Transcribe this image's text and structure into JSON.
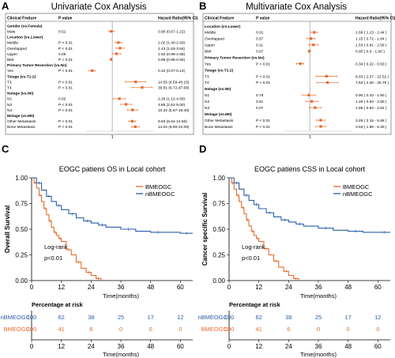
{
  "chart_data": [
    {
      "panel": "A",
      "type": "forest",
      "title": "Univariate Cox Analysis",
      "col_headers": {
        "feature": "Clinical Feature",
        "p": "P value",
        "hr": "Hazard Ratio(95% CI)"
      },
      "x_tick": "1",
      "reference_line": 1,
      "rows": [
        {
          "label": "Gender (vs.Female)",
          "header": true
        },
        {
          "label": "Male",
          "p": "0.51",
          "hr": "0.90 (0.67-1.22)",
          "est": 0.9,
          "lo": 0.67,
          "hi": 1.22
        },
        {
          "label": "Location (vs.Lower)",
          "header": true
        },
        {
          "label": "Middle",
          "p": "P < 0.01",
          "hr": "2.02 (1.40-2.93)",
          "est": 2.02,
          "lo": 1.4,
          "hi": 2.93
        },
        {
          "label": "Overlapped",
          "p": "P < 0.01",
          "hr": "2.43 (1.53-3.84)",
          "est": 2.43,
          "lo": 1.53,
          "hi": 3.84
        },
        {
          "label": "Upper",
          "p": "0.06",
          "hr": "1.63 (0.99-2.68)",
          "est": 1.63,
          "lo": 0.99,
          "hi": 2.68
        },
        {
          "label": "BMI",
          "p": "P < 0.01",
          "hr": "0.89 (0.85-0.94)",
          "est": 0.89,
          "lo": 0.85,
          "hi": 0.94
        },
        {
          "label": "Primary Tumor Resection (vs.No)",
          "header": true
        },
        {
          "label": "Yes",
          "p": "P < 0.01",
          "hr": "0.10 (0.07-0.14)",
          "est": 0.1,
          "lo": 0.07,
          "hi": 0.14
        },
        {
          "label": "Tstage (vs.T1-2)",
          "header": true
        },
        {
          "label": "T3",
          "p": "P < 0.01",
          "hr": "14.55 (4.59-46.15)",
          "est": 14.55,
          "lo": 4.59,
          "hi": 46.15
        },
        {
          "label": "T4",
          "p": "P < 0.01",
          "hr": "30.81 (9.72-97.68)",
          "est": 30.81,
          "lo": 9.72,
          "hi": 97.68
        },
        {
          "label": "Nstage (vs.N0)",
          "header": true
        },
        {
          "label": "N1",
          "p": "0.02",
          "hr": "2.26 (1.12-4.56)",
          "est": 2.26,
          "lo": 1.12,
          "hi": 4.56
        },
        {
          "label": "N2",
          "p": "P < 0.01",
          "hr": "4.85 (2.61-9.00)",
          "est": 4.85,
          "lo": 2.61,
          "hi": 9.0
        },
        {
          "label": "N3",
          "p": "P < 0.01",
          "hr": "10.22 (5.67-18.40)",
          "est": 10.22,
          "lo": 5.67,
          "hi": 18.4
        },
        {
          "label": "Mstage (vs.M0)",
          "header": true
        },
        {
          "label": "Other Metastasis",
          "p": "P < 0.01",
          "hr": "9.83 (6.64-14.56)",
          "est": 9.83,
          "lo": 6.64,
          "hi": 14.56
        },
        {
          "label": "Bone Metastasis",
          "p": "P < 0.01",
          "hr": "14.02 (8.90-22.09)",
          "est": 14.02,
          "lo": 8.9,
          "hi": 22.09
        }
      ]
    },
    {
      "panel": "B",
      "type": "forest",
      "title": "Multivariate Cox Analysis",
      "col_headers": {
        "feature": "Clinical Feature",
        "p": "P value",
        "hr": "Hazard Ratio(95% CI)"
      },
      "x_tick": "1",
      "reference_line": 1,
      "rows": [
        {
          "label": "Location (vs.Lower)",
          "header": true
        },
        {
          "label": "Middle",
          "p": "0.01",
          "hr": "1.66 ( 1.13 - 2.44 )",
          "est": 1.66,
          "lo": 1.13,
          "hi": 2.44
        },
        {
          "label": "Overlapped",
          "p": "0.57",
          "hr": "1.15 ( 0.72 - 1.84 )",
          "est": 1.15,
          "lo": 0.72,
          "hi": 1.84
        },
        {
          "label": "Upper",
          "p": "0.11",
          "hr": "1.53 ( 0.91 - 2.59 )",
          "est": 1.53,
          "lo": 0.91,
          "hi": 2.59
        },
        {
          "label": "BMI",
          "p": "0.07",
          "hr": "0.95 ( 0.9 - 1.00 )",
          "est": 0.95,
          "lo": 0.9,
          "hi": 1.0
        },
        {
          "label": "Primary Tumor Resection (vs.No)",
          "header": true
        },
        {
          "label": "Yes",
          "p": "P < 0.01",
          "hr": "0.34 ( 0.22 - 0.50 )",
          "est": 0.34,
          "lo": 0.22,
          "hi": 0.5
        },
        {
          "label": "Tstage (vs.T1-2)",
          "header": true
        },
        {
          "label": "T3",
          "p": "P < 0.01",
          "hr": "6.83 ( 2.07 - 22.52 )",
          "est": 6.83,
          "lo": 2.07,
          "hi": 22.52
        },
        {
          "label": "T4",
          "p": "P < 0.01",
          "hr": "7.64 ( 2.26 - 25.76 )",
          "est": 7.64,
          "lo": 2.26,
          "hi": 25.76
        },
        {
          "label": "Nstage (vs.N0)",
          "header": true
        },
        {
          "label": "N1",
          "p": "0.78",
          "hr": "0.90 ( 0.43 - 1.90 )",
          "est": 0.9,
          "lo": 0.43,
          "hi": 1.9
        },
        {
          "label": "N2",
          "p": "0.51",
          "hr": "1.26 ( 0.63 - 2.50 )",
          "est": 1.26,
          "lo": 0.63,
          "hi": 2.5
        },
        {
          "label": "N3",
          "p": "0.07",
          "hr": "1.85 ( 0.94 - 3.62 )",
          "est": 1.85,
          "lo": 0.94,
          "hi": 3.62
        },
        {
          "label": "Mstage (vs.M0)",
          "header": true
        },
        {
          "label": "Other Metastasis",
          "p": "P < 0.01",
          "hr": "3.49 ( 2.15 - 5.68 )",
          "est": 3.49,
          "lo": 2.15,
          "hi": 5.68
        },
        {
          "label": "Bone Metastasis",
          "p": "P < 0.01",
          "hr": "3.53 ( 1.98 - 6.30 )",
          "est": 3.53,
          "lo": 1.98,
          "hi": 6.3
        }
      ]
    },
    {
      "panel": "C",
      "type": "line",
      "subtype": "kaplan-meier",
      "title": "EOGC patiens OS in Local cohort",
      "xlabel": "Time(months)",
      "ylabel": "Overall Survival",
      "xlim": [
        0,
        65
      ],
      "ylim": [
        0,
        1.0
      ],
      "x_ticks": [
        0,
        12,
        24,
        36,
        48,
        60
      ],
      "y_ticks": [
        "0.00",
        "0.25",
        "0.50",
        "0.75",
        "1.00"
      ],
      "legend_position": "top-right",
      "annotation": [
        "Log-rank",
        "p<0.01"
      ],
      "series": [
        {
          "name": "BMEOGC",
          "color": "#e8692a",
          "x": [
            0,
            1,
            2,
            3,
            4,
            5,
            6,
            7,
            8,
            9,
            10,
            11,
            12,
            14,
            16,
            18,
            20,
            22,
            24,
            26,
            28
          ],
          "y": [
            1.0,
            0.95,
            0.9,
            0.83,
            0.77,
            0.7,
            0.64,
            0.58,
            0.52,
            0.47,
            0.44,
            0.41,
            0.38,
            0.3,
            0.25,
            0.18,
            0.12,
            0.08,
            0.05,
            0.02,
            0.0
          ]
        },
        {
          "name": "nBMEOGC",
          "color": "#2b5ea8",
          "x": [
            0,
            2,
            4,
            6,
            8,
            10,
            12,
            15,
            18,
            21,
            24,
            27,
            30,
            36,
            42,
            48,
            54,
            60,
            65
          ],
          "y": [
            1.0,
            0.95,
            0.88,
            0.82,
            0.77,
            0.73,
            0.69,
            0.65,
            0.61,
            0.58,
            0.56,
            0.54,
            0.52,
            0.5,
            0.48,
            0.47,
            0.47,
            0.46,
            0.46
          ]
        }
      ],
      "risk_table": {
        "title": "Percentage at risk",
        "xlabel": "Time(months)",
        "rows": [
          {
            "name": "nBMEOGC",
            "color": "#2b5ea8",
            "values": [
              "100",
              "62",
              "38",
              "25",
              "17",
              "12"
            ]
          },
          {
            "name": "BMEOGC",
            "color": "#e8692a",
            "values": [
              "100",
              "41",
              "6",
              "0",
              "0",
              "0"
            ]
          }
        ]
      }
    },
    {
      "panel": "D",
      "type": "line",
      "subtype": "kaplan-meier",
      "title": "EOGC patiens CSS in Local cohort",
      "xlabel": "Time(months)",
      "ylabel": "Cancer specific Survival",
      "xlim": [
        0,
        65
      ],
      "ylim": [
        0,
        1.0
      ],
      "x_ticks": [
        0,
        12,
        24,
        36,
        48,
        60
      ],
      "y_ticks": [
        "0.00",
        "0.25",
        "0.50",
        "0.75",
        "1.00"
      ],
      "legend_position": "top-right",
      "annotation": [
        "Log-rank",
        "p<0.01"
      ],
      "series": [
        {
          "name": "BMEOGC",
          "color": "#e8692a",
          "x": [
            0,
            1,
            2,
            3,
            4,
            5,
            6,
            7,
            8,
            9,
            10,
            11,
            12,
            14,
            16,
            18,
            20,
            22,
            24,
            26,
            28
          ],
          "y": [
            1.0,
            0.95,
            0.89,
            0.83,
            0.77,
            0.71,
            0.65,
            0.59,
            0.53,
            0.48,
            0.44,
            0.41,
            0.38,
            0.31,
            0.25,
            0.19,
            0.13,
            0.09,
            0.05,
            0.02,
            0.0
          ]
        },
        {
          "name": "nBMEOGC",
          "color": "#2b5ea8",
          "x": [
            0,
            2,
            4,
            6,
            8,
            10,
            12,
            15,
            18,
            21,
            24,
            27,
            30,
            36,
            42,
            48,
            54,
            60,
            65
          ],
          "y": [
            1.0,
            0.95,
            0.89,
            0.83,
            0.78,
            0.74,
            0.7,
            0.66,
            0.62,
            0.59,
            0.57,
            0.55,
            0.53,
            0.51,
            0.49,
            0.48,
            0.47,
            0.47,
            0.47
          ]
        }
      ],
      "risk_table": {
        "title": "Percentage at risk",
        "xlabel": "Time(months)",
        "rows": [
          {
            "name": "nBMEOGC",
            "color": "#2b5ea8",
            "values": [
              "100",
              "62",
              "38",
              "25",
              "17",
              "12"
            ]
          },
          {
            "name": "BMEOGC",
            "color": "#e8692a",
            "values": [
              "100",
              "41",
              "6",
              "0",
              "0",
              "0"
            ]
          }
        ]
      }
    }
  ]
}
